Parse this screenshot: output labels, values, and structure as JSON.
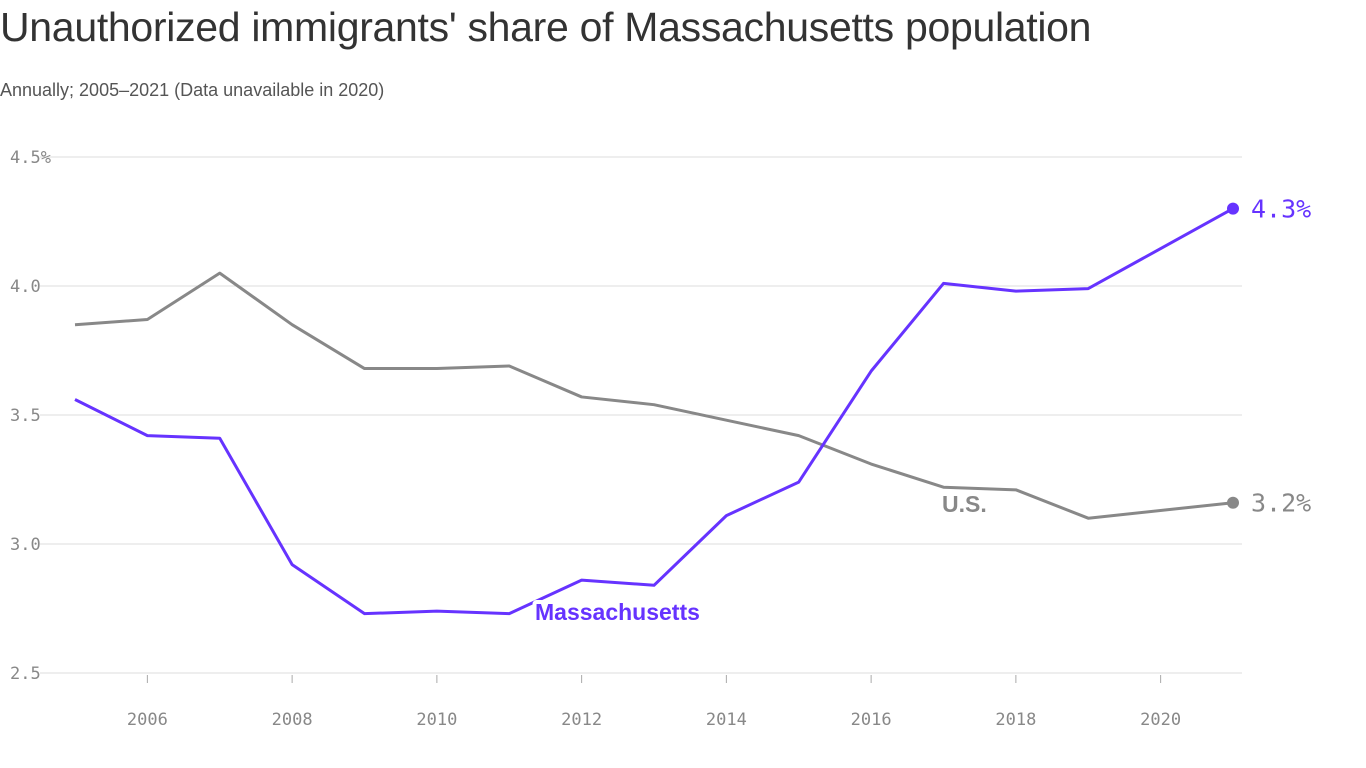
{
  "chart_data": {
    "type": "line",
    "title": "Unauthorized immigrants' share of Massachusetts population",
    "subtitle": "Annually; 2005–2021 (Data unavailable in 2020)",
    "x": [
      2005,
      2006,
      2007,
      2008,
      2009,
      2010,
      2011,
      2012,
      2013,
      2014,
      2015,
      2016,
      2017,
      2018,
      2019,
      2021
    ],
    "series": [
      {
        "name": "U.S.",
        "color": "#888888",
        "end_label": "3.2%",
        "values": [
          3.85,
          3.87,
          4.05,
          3.85,
          3.68,
          3.68,
          3.69,
          3.57,
          3.54,
          3.48,
          3.42,
          3.31,
          3.22,
          3.21,
          3.1,
          3.16
        ]
      },
      {
        "name": "Massachusetts",
        "color": "#6633ff",
        "end_label": "4.3%",
        "values": [
          3.56,
          3.42,
          3.41,
          2.92,
          2.73,
          2.74,
          2.73,
          2.86,
          2.84,
          3.11,
          3.24,
          3.67,
          4.01,
          3.98,
          3.99,
          4.3
        ]
      }
    ],
    "ylim": [
      2.5,
      4.5
    ],
    "xlim": [
      2005,
      2021
    ],
    "y_ticks": [
      "2.5",
      "3.0",
      "3.5",
      "4.0",
      "4.5%"
    ],
    "y_tick_values": [
      2.5,
      3.0,
      3.5,
      4.0,
      4.5
    ],
    "x_ticks": [
      "2006",
      "2008",
      "2010",
      "2012",
      "2014",
      "2016",
      "2018",
      "2020"
    ],
    "x_tick_values": [
      2006,
      2008,
      2010,
      2012,
      2014,
      2016,
      2018,
      2020
    ],
    "grid": true,
    "xlabel": "",
    "ylabel": ""
  }
}
